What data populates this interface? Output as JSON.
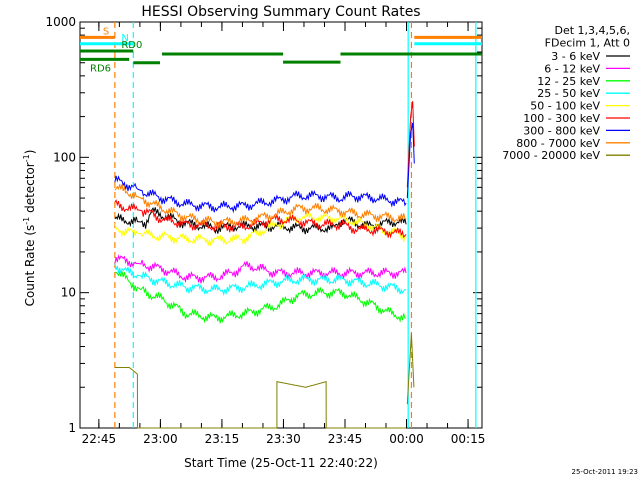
{
  "chart_data": {
    "type": "line",
    "title": "HESSI Observing Summary Count Rates",
    "xlabel": "Start Time (25-Oct-11 22:40:22)",
    "ylabel_main": "Count Rate (s",
    "ylabel_sup1": "-1",
    "ylabel_mid": " detector",
    "ylabel_sup2": "-1",
    "ylabel_end": ")",
    "footer": "25-Oct-2011 19:23",
    "x_range_minutes": [
      0,
      98
    ],
    "y_scale": "log",
    "ylim": [
      1,
      1000
    ],
    "x_ticks": [
      {
        "m": 4.6,
        "label": "22:45"
      },
      {
        "m": 19.6,
        "label": "23:00"
      },
      {
        "m": 34.6,
        "label": "23:15"
      },
      {
        "m": 49.6,
        "label": "23:30"
      },
      {
        "m": 64.6,
        "label": "23:45"
      },
      {
        "m": 79.6,
        "label": "00:00"
      },
      {
        "m": 94.6,
        "label": "00:15"
      }
    ],
    "y_ticks": [
      {
        "v": 1,
        "label": "1"
      },
      {
        "v": 10,
        "label": "10"
      },
      {
        "v": 100,
        "label": "100"
      },
      {
        "v": 1000,
        "label": "1000"
      }
    ],
    "legend": {
      "placement": "right",
      "header": [
        "Det 1,3,4,5,6,",
        "FDecim 1, Att 0"
      ]
    },
    "series": [
      {
        "name": "3 - 6 keV",
        "color": "#000000",
        "x": [
          8.5,
          12,
          16,
          17.5,
          25,
          33,
          37.5,
          42,
          48,
          54,
          62,
          64,
          70,
          78,
          79.5
        ],
        "y": [
          35,
          34,
          33,
          40,
          33,
          30,
          31,
          31,
          31,
          30,
          30,
          35,
          31,
          34,
          32
        ]
      },
      {
        "name": "6 - 12 keV",
        "color": "#ff00ff",
        "x": [
          8.5,
          12,
          16,
          20,
          26,
          33,
          37,
          41,
          44,
          48,
          53,
          58,
          64,
          68,
          72,
          76,
          79.5
        ],
        "y": [
          18,
          17,
          16,
          15,
          13,
          13,
          14,
          16,
          15,
          14,
          14,
          14,
          14,
          14,
          14,
          14,
          14
        ]
      },
      {
        "name": "12 - 25 keV",
        "color": "#00ff00",
        "x": [
          8.5,
          12,
          16,
          20,
          26,
          33,
          40,
          48,
          53,
          58,
          64,
          68,
          72,
          76,
          79.5
        ],
        "y": [
          15,
          12,
          10,
          9,
          7,
          6.5,
          7,
          8,
          9.5,
          10,
          10,
          9,
          8,
          7,
          6.5
        ]
      },
      {
        "name": "25 - 50 keV",
        "color": "#00ffff",
        "x": [
          8.5,
          12,
          16,
          20,
          26,
          33,
          40,
          48,
          53,
          58,
          64,
          68,
          72,
          76,
          79.5
        ],
        "y": [
          16,
          14,
          13,
          12,
          11,
          10.5,
          11,
          12,
          12.5,
          12.5,
          12.5,
          12,
          11.5,
          11,
          10.5
        ]
      },
      {
        "name": "50 - 100 keV",
        "color": "#ffff00",
        "x": [
          8.5,
          12,
          16,
          20,
          26,
          33,
          40,
          48,
          53,
          58,
          64,
          68,
          72,
          76,
          79.5
        ],
        "y": [
          30,
          28,
          27,
          26,
          25,
          24.5,
          25,
          32,
          36,
          36,
          35,
          33,
          30,
          28,
          26
        ]
      },
      {
        "name": "100 - 300 keV",
        "color": "#ff0000",
        "x": [
          8.5,
          12,
          16,
          17.5,
          20,
          26,
          33,
          40,
          48,
          53,
          58,
          64,
          66,
          72,
          76,
          79.5
        ],
        "y": [
          45,
          42,
          40,
          38,
          35,
          32,
          31,
          31,
          35,
          34,
          32,
          32,
          30,
          29,
          28,
          27
        ]
      },
      {
        "name": "300 - 800 keV",
        "color": "#0000ff",
        "x": [
          8.5,
          12,
          16,
          20,
          26,
          33,
          40,
          48,
          53,
          58,
          64,
          66,
          72,
          76,
          79.5
        ],
        "y": [
          68,
          62,
          55,
          50,
          45,
          43,
          44,
          48,
          52,
          52,
          50,
          52,
          50,
          48,
          46
        ]
      },
      {
        "name": "800 - 7000 keV",
        "color": "#ff8000",
        "x": [
          8.5,
          12,
          16,
          20,
          26,
          33,
          40,
          48,
          53,
          58,
          64,
          68,
          72,
          76,
          79.5
        ],
        "y": [
          60,
          55,
          48,
          42,
          36,
          33,
          34,
          38,
          42,
          42,
          40,
          38,
          37,
          36,
          35
        ]
      },
      {
        "name": "7000 - 20000 keV",
        "color": "#808000",
        "x": [
          8.5,
          12,
          14,
          14.01,
          48,
          48.01,
          55,
          60,
          60.01,
          79.5
        ],
        "y": [
          2.8,
          2.8,
          2.5,
          1.0,
          1.0,
          2.2,
          2.0,
          2.2,
          1.0,
          1.0
        ]
      }
    ],
    "spikes": [
      {
        "color": "#ff0000",
        "x": [
          79.8,
          80.6,
          81.1,
          81.5
        ],
        "y": [
          60,
          200,
          260,
          120
        ]
      },
      {
        "color": "#0000ff",
        "x": [
          79.8,
          80.6,
          81.1,
          81.5
        ],
        "y": [
          50,
          150,
          180,
          90
        ]
      },
      {
        "color": "#808000",
        "x": [
          79.8,
          80.8,
          81.4
        ],
        "y": [
          1.5,
          5,
          2
        ]
      }
    ],
    "flags": [
      {
        "label": "S",
        "color": "#ff8000",
        "x": [
          0,
          8.5
        ],
        "y": 770
      },
      {
        "label": "N",
        "color": "#00ffff",
        "x": [
          0,
          13
        ],
        "y": 690
      },
      {
        "label": "RD0",
        "color": "#008000",
        "x": [
          0,
          13
        ],
        "y": 610
      },
      {
        "label": "RD6",
        "color": "#008000",
        "x": [
          0,
          12
        ],
        "y": 530
      },
      {
        "label": "",
        "color": "#008000",
        "x": [
          13,
          19.5
        ],
        "y": 500
      },
      {
        "label": "",
        "color": "#008000",
        "x": [
          20,
          49.5
        ],
        "y": 580
      },
      {
        "label": "",
        "color": "#008000",
        "x": [
          49.5,
          63.5
        ],
        "y": 505
      },
      {
        "label": "",
        "color": "#008000",
        "x": [
          63.5,
          98
        ],
        "y": 580
      },
      {
        "label": "",
        "color": "#ff8000",
        "x": [
          81.5,
          98
        ],
        "y": 770
      },
      {
        "label": "",
        "color": "#00ffff",
        "x": [
          81.5,
          98
        ],
        "y": 690
      }
    ],
    "vlines": [
      {
        "m": 8.5,
        "color": "#ff8000",
        "dash": true
      },
      {
        "m": 13,
        "color": "#00ffff",
        "dash": true
      },
      {
        "m": 80,
        "color": "#00ffff",
        "dash": false
      },
      {
        "m": 80.8,
        "color": "#ff8000",
        "dash": true
      },
      {
        "m": 96.5,
        "color": "#00ffff",
        "dash": false
      }
    ]
  }
}
